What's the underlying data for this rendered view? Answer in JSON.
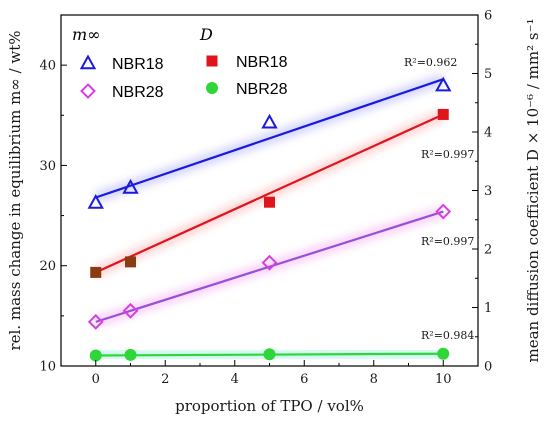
{
  "chart_data": {
    "type": "scatter",
    "x": [
      0,
      1,
      5,
      10
    ],
    "xlabel": "proportion of TPO / vol%",
    "ylabel_left": "rel. mass change in equilibrium m∞ / wt%",
    "ylabel_right": "mean diffusion coefficient D × 10⁻⁶ / mm² s⁻¹",
    "xlim": [
      -1,
      11
    ],
    "ylim_left": [
      10,
      45
    ],
    "ylim_right": [
      0,
      6
    ],
    "xticks": [
      "0",
      "2",
      "4",
      "6",
      "8",
      "10"
    ],
    "yticks_left": [
      "10",
      "20",
      "30",
      "40"
    ],
    "yticks_right": [
      "0",
      "1",
      "2",
      "3",
      "4",
      "5",
      "6"
    ],
    "legend": {
      "group_m": "m∞",
      "group_d": "D",
      "entries": [
        "NBR18",
        "NBR28",
        "NBR18",
        "NBR28"
      ]
    },
    "series": [
      {
        "name": "NBR18",
        "group": "m∞",
        "axis": "left",
        "marker": "triangle",
        "color": "#1a1adb",
        "values": [
          26.3,
          27.8,
          34.3,
          38.0
        ],
        "fit": [
          [
            0,
            26.8
          ],
          [
            10,
            38.6
          ]
        ],
        "r2": "R²=0.962",
        "fit_color": "#1a1adb"
      },
      {
        "name": "NBR28",
        "group": "m∞",
        "axis": "left",
        "marker": "diamond",
        "color": "#d63fe0",
        "values": [
          14.4,
          15.5,
          20.3,
          25.4
        ],
        "fit": [
          [
            0,
            14.4
          ],
          [
            10,
            25.4
          ]
        ],
        "r2": "R²=0.997",
        "fit_color": "#9b4fd6"
      },
      {
        "name": "NBR18",
        "group": "D",
        "axis": "right",
        "marker": "square",
        "color": "#e0151b",
        "values": [
          1.6,
          1.78,
          2.8,
          4.3
        ],
        "fit": [
          [
            0,
            1.6
          ],
          [
            10,
            4.3
          ]
        ],
        "r2": "R²=0.997",
        "fit_color": "#e0151b"
      },
      {
        "name": "NBR28",
        "group": "D",
        "axis": "right",
        "marker": "circle",
        "color": "#2fd63a",
        "values": [
          0.18,
          0.19,
          0.2,
          0.21
        ],
        "fit": [
          [
            0,
            0.18
          ],
          [
            10,
            0.21
          ]
        ],
        "r2": "R²=0.984",
        "fit_color": "#2fd63a"
      }
    ]
  }
}
